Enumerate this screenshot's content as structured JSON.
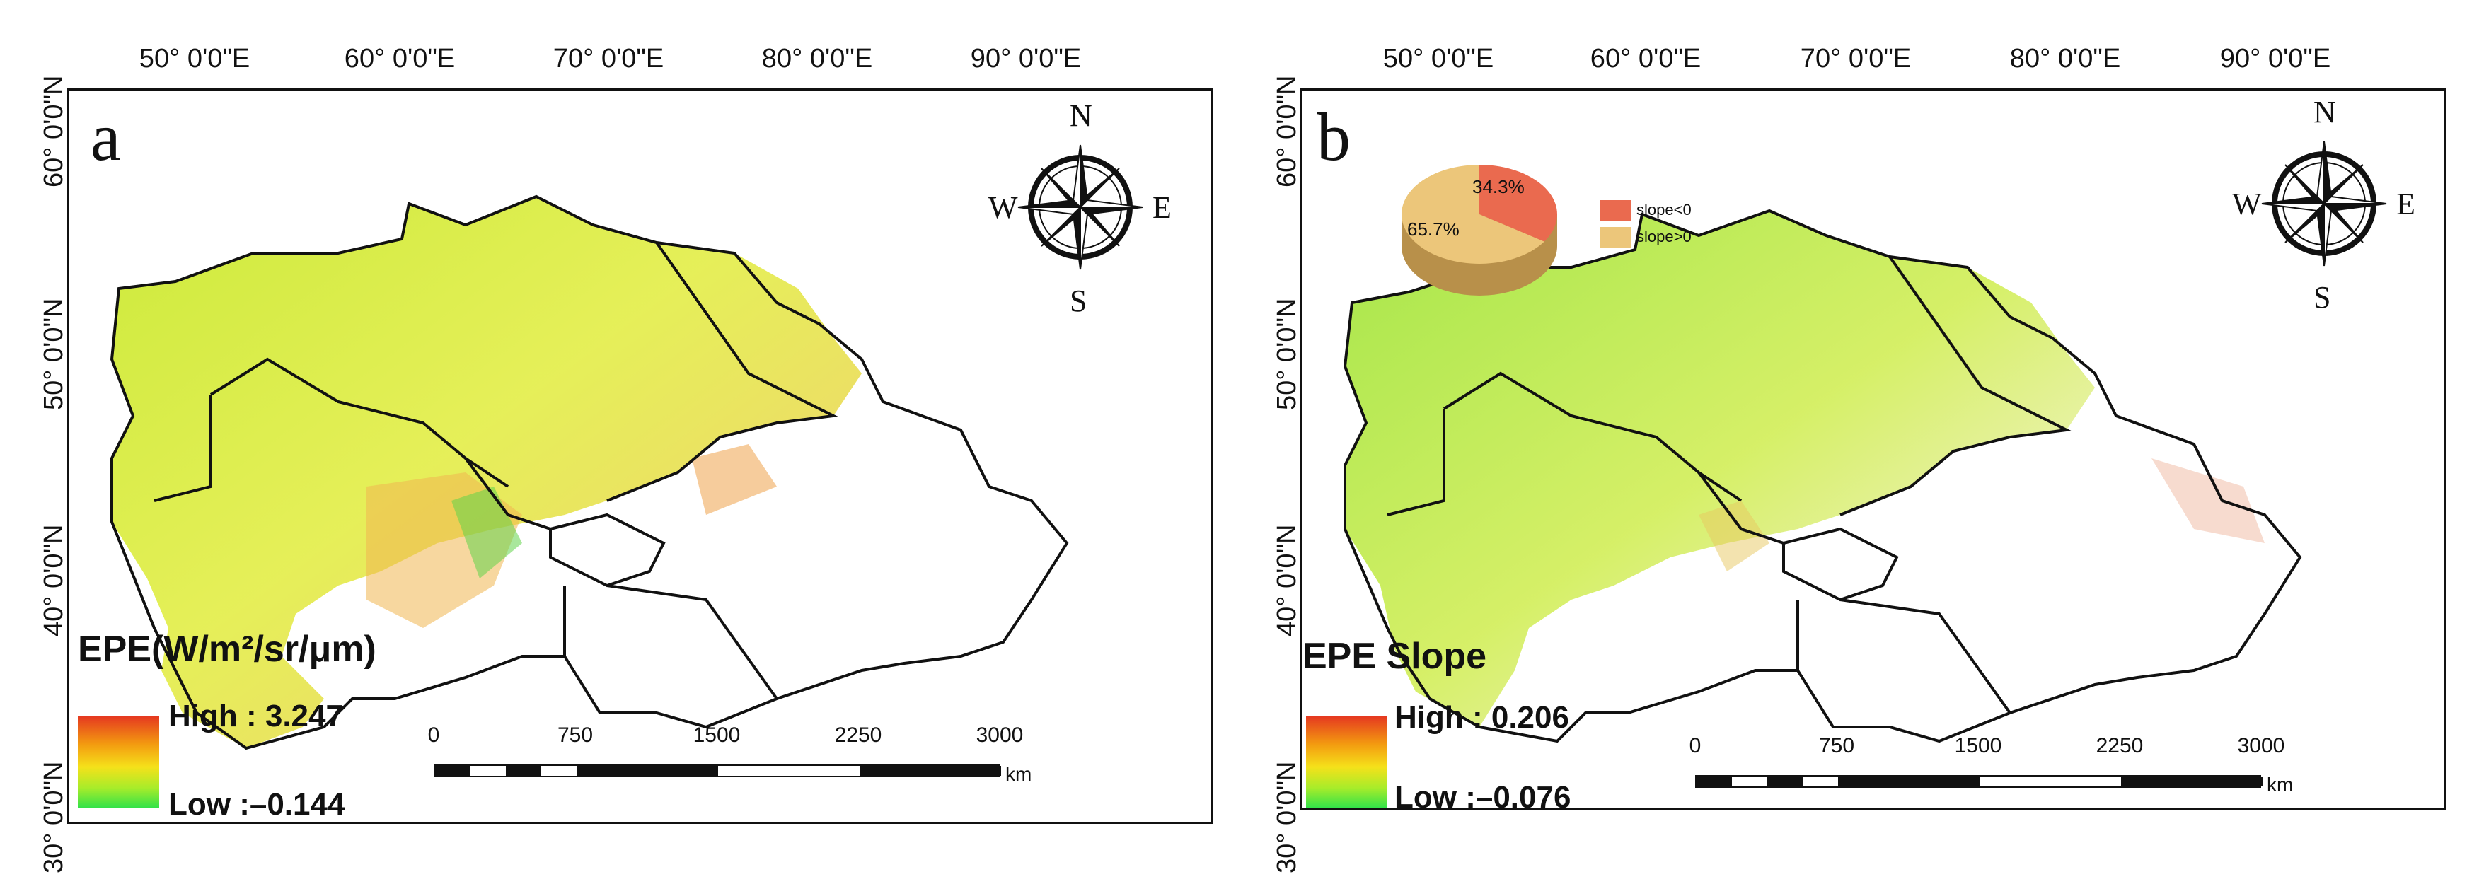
{
  "lon_labels": [
    "50° 0'0\"E",
    "60° 0'0\"E",
    "70° 0'0\"E",
    "80° 0'0\"E",
    "90° 0'0\"E"
  ],
  "lat_labels": [
    "60° 0'0\"N",
    "50° 0'0\"N",
    "40° 0'0\"N",
    "30° 0'0\"N"
  ],
  "compass": {
    "n": "N",
    "s": "S",
    "e": "E",
    "w": "W"
  },
  "scalebar": {
    "ticks": [
      "0",
      "750",
      "1500",
      "2250",
      "3000"
    ],
    "unit": "km"
  },
  "panel_a": {
    "letter": "a",
    "legend_title": "EPE(W/m²/sr/μm)",
    "high_label": "High : 3.247",
    "low_label": "Low :–0.144"
  },
  "panel_b": {
    "letter": "b",
    "legend_title": "EPE Slope",
    "high_label": "High : 0.206",
    "low_label": "Low :–0.076",
    "pie": {
      "slices": [
        {
          "label": "slope<0",
          "percent_text": "34.3%",
          "value": 34.3,
          "color": "#ea6a4f"
        },
        {
          "label": "slope>0",
          "percent_text": "65.7%",
          "value": 65.7,
          "color": "#ecc67a"
        }
      ]
    }
  },
  "colors": {
    "ramp_high": "#e53920",
    "ramp_low": "#2fe24a",
    "frame": "#111111"
  }
}
